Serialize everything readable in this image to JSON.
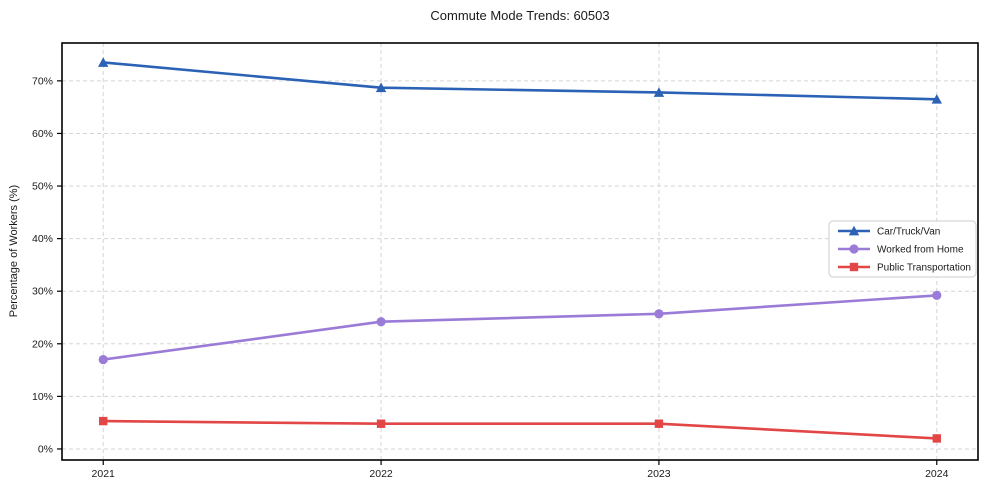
{
  "chart_data": {
    "type": "line",
    "title": "Commute Mode Trends: 60503",
    "xlabel": "",
    "ylabel": "Percentage of Workers (%)",
    "categories": [
      "2021",
      "2022",
      "2023",
      "2024"
    ],
    "series": [
      {
        "name": "Car/Truck/Van",
        "color": "#2b62b5",
        "marker": "triangle-up",
        "values": [
          73.5,
          68.7,
          67.8,
          66.5
        ]
      },
      {
        "name": "Worked from Home",
        "color": "#9a7bd7",
        "marker": "circle",
        "values": [
          17.0,
          24.2,
          25.7,
          29.2
        ]
      },
      {
        "name": "Public Transportation",
        "color": "#e24646",
        "marker": "square",
        "values": [
          5.3,
          4.8,
          4.8,
          2.0
        ]
      }
    ],
    "yticks": [
      0,
      10,
      20,
      30,
      40,
      50,
      60,
      70
    ],
    "ytick_labels": [
      "0%",
      "10%",
      "20%",
      "30%",
      "40%",
      "50%",
      "60%",
      "70%"
    ],
    "ylim": [
      -2.1,
      77.2
    ],
    "grid": true,
    "grid_style": "dashed",
    "grid_color": "#d5d5d5",
    "axes_border_color": "#000000",
    "text_color": "#1a1a1a",
    "legend_position": "center-right",
    "legend_border_color": "#cccccc",
    "x_margin_frac": 0.045
  }
}
